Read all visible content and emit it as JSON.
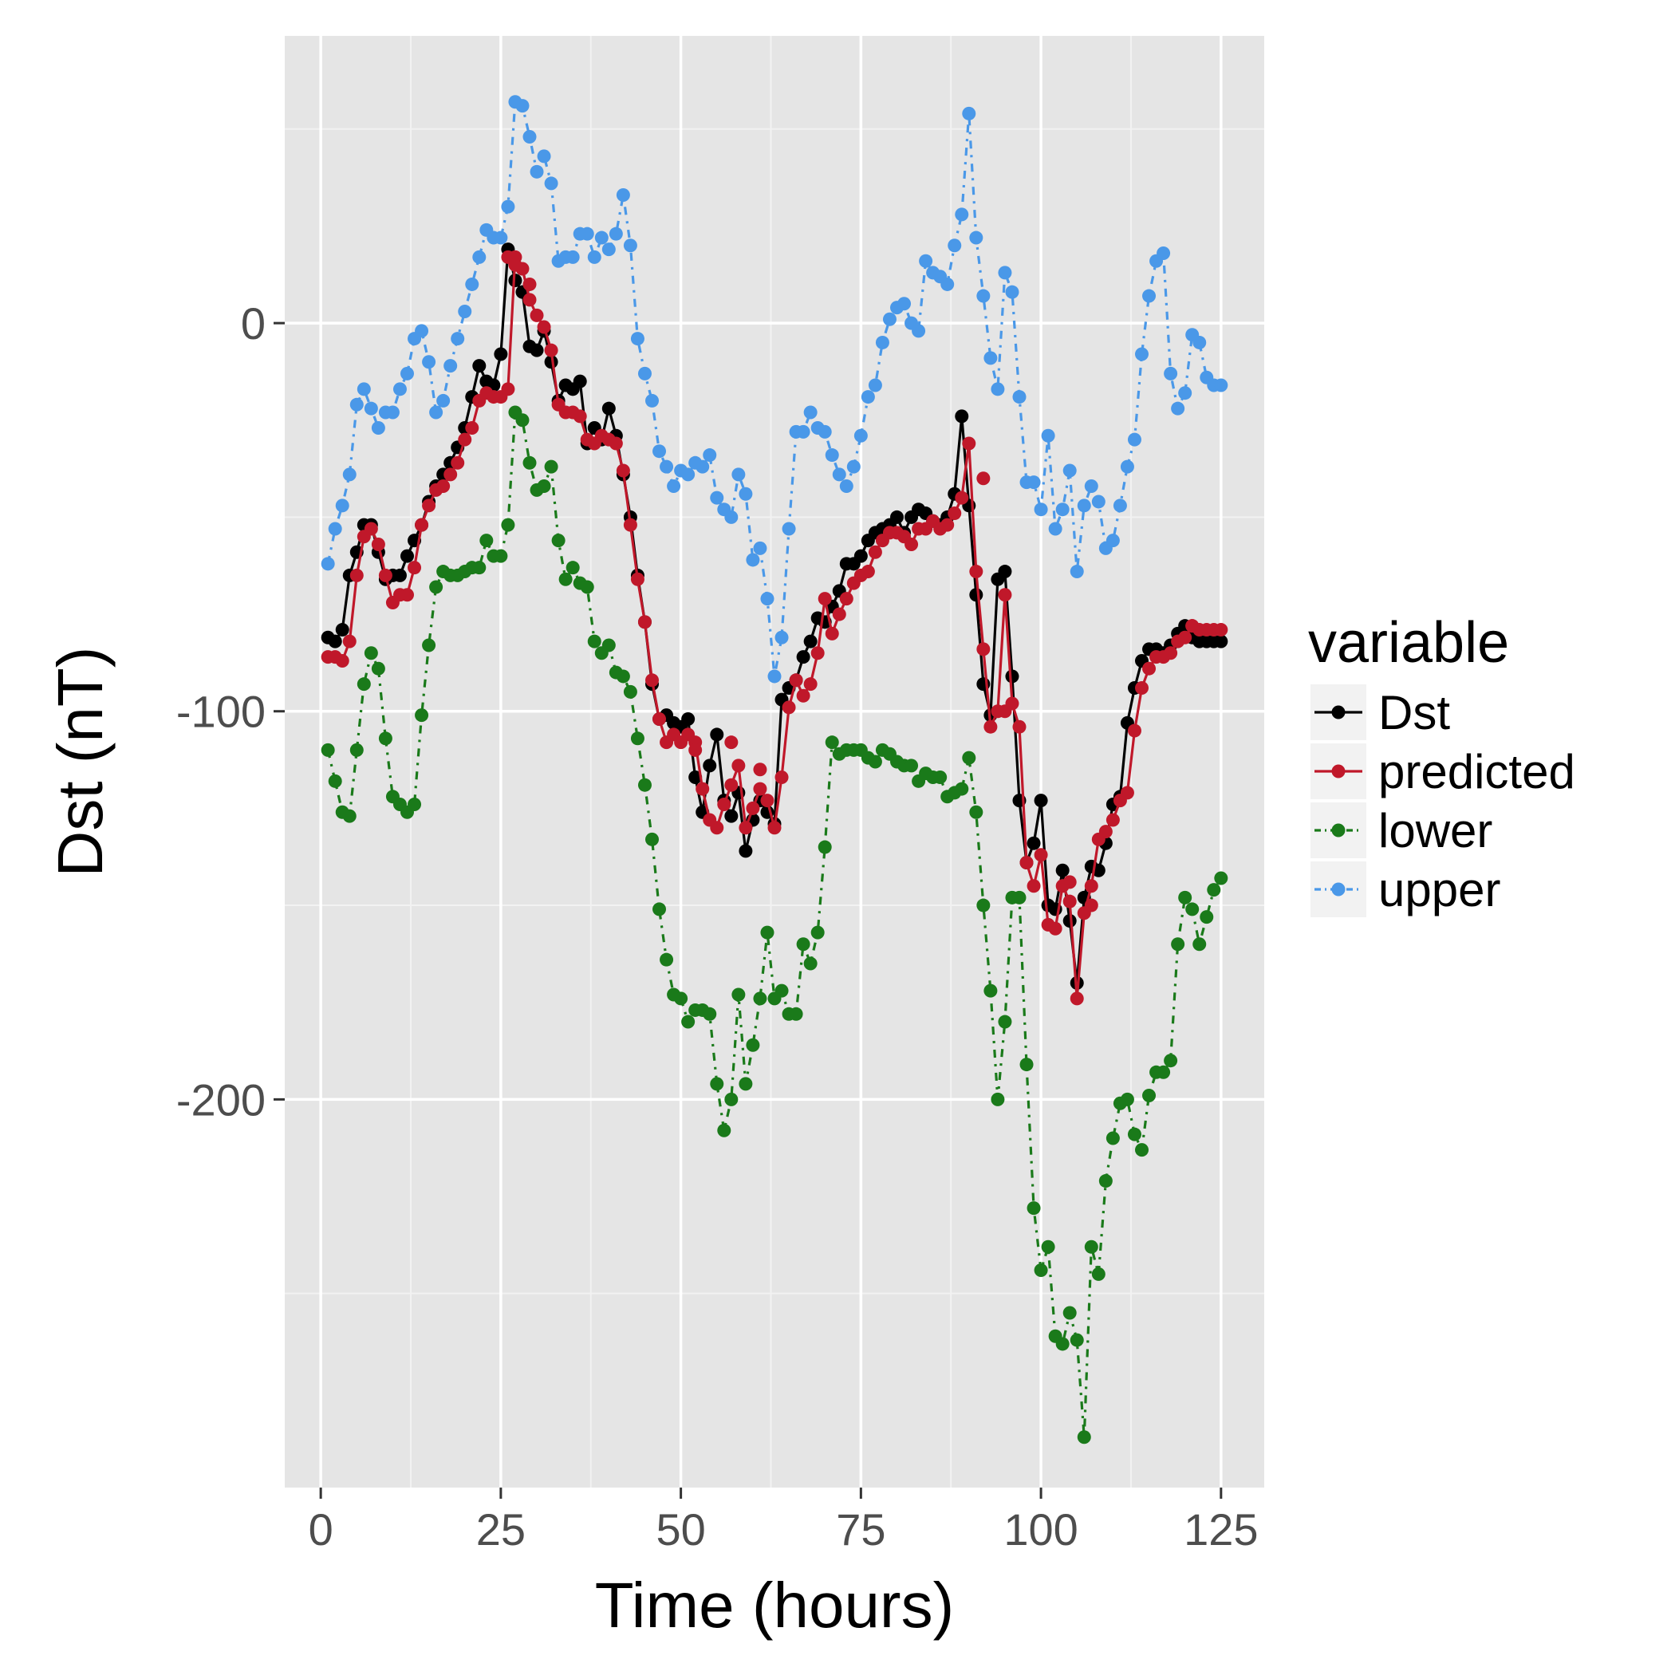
{
  "chart_data": {
    "type": "line",
    "title": "",
    "xlabel": "Time (hours)",
    "ylabel": "Dst (nT)",
    "xlim": [
      -5,
      131
    ],
    "ylim": [
      -300,
      74
    ],
    "x_ticks": [
      0,
      25,
      50,
      75,
      100,
      125
    ],
    "x_tick_labels": [
      "0",
      "25",
      "50",
      "75",
      "100",
      "125"
    ],
    "y_ticks": [
      0,
      -100,
      -200
    ],
    "y_tick_labels": [
      "0",
      "-100",
      "-200"
    ],
    "grid": true,
    "legend": {
      "title": "variable",
      "position": "right"
    },
    "x": [
      1,
      2,
      3,
      4,
      5,
      6,
      7,
      8,
      9,
      10,
      11,
      12,
      13,
      14,
      15,
      16,
      17,
      18,
      19,
      20,
      21,
      22,
      23,
      24,
      25,
      26,
      27,
      28,
      29,
      30,
      31,
      32,
      33,
      34,
      35,
      36,
      37,
      38,
      39,
      40,
      41,
      42,
      43,
      44,
      45,
      46,
      47,
      48,
      49,
      50,
      51,
      52,
      53,
      54,
      55,
      56,
      57,
      58,
      59,
      60,
      61,
      62,
      63,
      64,
      65,
      66,
      67,
      68,
      69,
      70,
      71,
      72,
      73,
      74,
      75,
      76,
      77,
      78,
      79,
      80,
      81,
      82,
      83,
      84,
      85,
      86,
      87,
      88,
      89,
      90,
      91,
      92,
      93,
      94,
      95,
      96,
      97,
      98,
      99,
      100,
      101,
      102,
      103,
      104,
      105,
      106,
      107,
      108,
      109,
      110,
      111,
      112,
      113,
      114,
      115,
      116,
      117,
      118,
      119,
      120,
      121,
      122,
      123,
      124,
      125
    ],
    "series": [
      {
        "name": "Dst",
        "color": "#000000",
        "dash": "solid",
        "values": [
          -81,
          -82,
          -79,
          -65,
          -59,
          -52,
          -52,
          -59,
          -66,
          -65,
          -65,
          -60,
          -56,
          -52,
          -46,
          -42,
          -39,
          -36,
          -32,
          -27,
          -19,
          -11,
          -15,
          -16,
          -8,
          19,
          11,
          8,
          -6,
          -7,
          -2,
          -10,
          -20,
          -16,
          -17,
          -15,
          -31,
          -27,
          -30,
          -22,
          -29,
          -39,
          -50,
          -65,
          -77,
          -93,
          -102,
          -101,
          -103,
          -104,
          -102,
          -117,
          -126,
          -114,
          -106,
          -123,
          -127,
          -121,
          -136,
          -128,
          -123,
          -126,
          -129,
          -97,
          -94,
          -92,
          -86,
          -82,
          -76,
          -77,
          -73,
          -69,
          -62,
          -62,
          -60,
          -56,
          -54,
          -53,
          -52,
          -50,
          -54,
          -50,
          -48,
          -49,
          -51,
          -52,
          -50,
          -44,
          -24,
          -47,
          -70,
          -93,
          -101,
          -66,
          -64,
          -91,
          -123,
          -139,
          -134,
          -123,
          -150,
          -151,
          -141,
          -154,
          -170,
          -148,
          -140,
          -141,
          -134,
          -124,
          -122,
          -103,
          -94,
          -87,
          -84,
          -84,
          -85,
          -83,
          -80,
          -78,
          -81,
          -82,
          -82,
          -82,
          -82
        ],
        "extra_points": []
      },
      {
        "name": "predicted",
        "color": "#c0182a",
        "dash": "solid",
        "values": [
          -86,
          -86,
          -87,
          -82,
          -65,
          -55,
          -53,
          -57,
          -65,
          -72,
          -70,
          -70,
          -63,
          -52,
          -47,
          -43,
          -42,
          -39,
          -36,
          -30,
          -27,
          -20,
          -18,
          -19,
          -19,
          -17,
          17,
          14,
          6,
          2,
          -1,
          -7,
          -21,
          -23,
          -23,
          -24,
          -30,
          -31,
          -29,
          -30,
          -31,
          -38,
          -52,
          -66,
          -77,
          -92,
          -102,
          -108,
          -106,
          -108,
          -106,
          -108,
          -120,
          -128,
          -130,
          -124,
          -119,
          -114,
          -130,
          -125,
          -120,
          -123,
          -130,
          -117,
          -99,
          -92,
          -96,
          -93,
          -85,
          -71,
          -80,
          -75,
          -71,
          -67,
          -65,
          -64,
          -59,
          -56,
          -54,
          -54,
          -55,
          -57,
          -53,
          -53,
          -51,
          -53,
          -52,
          -49,
          -45,
          -31,
          -64,
          -84,
          -104,
          -100,
          -70,
          -98,
          -104,
          -139,
          -145,
          -137,
          -155,
          -156,
          -145,
          -149,
          -174,
          -152,
          -145,
          -133,
          -131,
          -128,
          -123,
          -121,
          -105,
          -94,
          -89,
          -86,
          -86,
          -85,
          -82,
          -81,
          -78,
          -79,
          -79,
          -79,
          -79
        ],
        "extra_points": [
          {
            "x": 26,
            "y": 17
          },
          {
            "x": 27,
            "y": 15
          },
          {
            "x": 29,
            "y": 10
          },
          {
            "x": 52,
            "y": -110
          },
          {
            "x": 57,
            "y": -108
          },
          {
            "x": 61,
            "y": -115
          },
          {
            "x": 92,
            "y": -40
          },
          {
            "x": 95,
            "y": -100
          },
          {
            "x": 104,
            "y": -144
          },
          {
            "x": 107,
            "y": -150
          },
          {
            "x": 121,
            "y": -78
          }
        ]
      },
      {
        "name": "lower",
        "color": "#1a7a1a",
        "dash": "dashdot",
        "values": [
          -110,
          -118,
          -126,
          -127,
          -110,
          -93,
          -85,
          -89,
          -107,
          -122,
          -124,
          -126,
          -124,
          -101,
          -83,
          -68,
          -64,
          -65,
          -65,
          -64,
          -63,
          -63,
          -56,
          -60,
          -60,
          -52,
          -23,
          -25,
          -36,
          -43,
          -42,
          -37,
          -56,
          -66,
          -63,
          -67,
          -68,
          -82,
          -85,
          -83,
          -90,
          -91,
          -95,
          -107,
          -119,
          -133,
          -151,
          -164,
          -173,
          -174,
          -180,
          -177,
          -177,
          -178,
          -196,
          -208,
          -200,
          -173,
          -196,
          -186,
          -174,
          -157,
          -174,
          -172,
          -178,
          -178,
          -160,
          -165,
          -157,
          -135,
          -108,
          -111,
          -110,
          -110,
          -110,
          -112,
          -113,
          -110,
          -111,
          -113,
          -114,
          -114,
          -118,
          -116,
          -117,
          -117,
          -122,
          -121,
          -120,
          -112,
          -126,
          -150,
          -172,
          -200,
          -180,
          -148,
          -148,
          -191,
          -228,
          -244,
          -238,
          -261,
          -263,
          -255,
          -262,
          -287,
          -238,
          -245,
          -221,
          -210,
          -201,
          -200,
          -209,
          -213,
          -199,
          -193,
          -193,
          -190,
          -160,
          -148,
          -151,
          -160,
          -153,
          -146,
          -143
        ],
        "extra_points": []
      },
      {
        "name": "upper",
        "color": "#4a98e8",
        "dash": "dashdot",
        "values": [
          -62,
          -53,
          -47,
          -39,
          -21,
          -17,
          -22,
          -27,
          -23,
          -23,
          -17,
          -13,
          -4,
          -2,
          -10,
          -23,
          -20,
          -11,
          -4,
          3,
          10,
          17,
          24,
          22,
          22,
          30,
          57,
          56,
          48,
          39,
          43,
          36,
          16,
          17,
          17,
          23,
          23,
          17,
          22,
          19,
          23,
          33,
          20,
          -4,
          -13,
          -20,
          -33,
          -37,
          -42,
          -38,
          -39,
          -36,
          -37,
          -34,
          -45,
          -48,
          -50,
          -39,
          -44,
          -61,
          -58,
          -71,
          -91,
          -81,
          -53,
          -28,
          -28,
          -23,
          -27,
          -28,
          -34,
          -39,
          -42,
          -37,
          -29,
          -19,
          -16,
          -5,
          1,
          4,
          5,
          0,
          -2,
          16,
          13,
          12,
          10,
          20,
          28,
          54,
          22,
          7,
          -9,
          -17,
          13,
          8,
          -19,
          -41,
          -41,
          -48,
          -29,
          -53,
          -48,
          -38,
          -64,
          -47,
          -42,
          -46,
          -58,
          -56,
          -47,
          -37,
          -30,
          -8,
          7,
          16,
          18,
          -13,
          -22,
          -18,
          -3,
          -5,
          -14,
          -16,
          -16
        ],
        "extra_points": []
      }
    ]
  }
}
